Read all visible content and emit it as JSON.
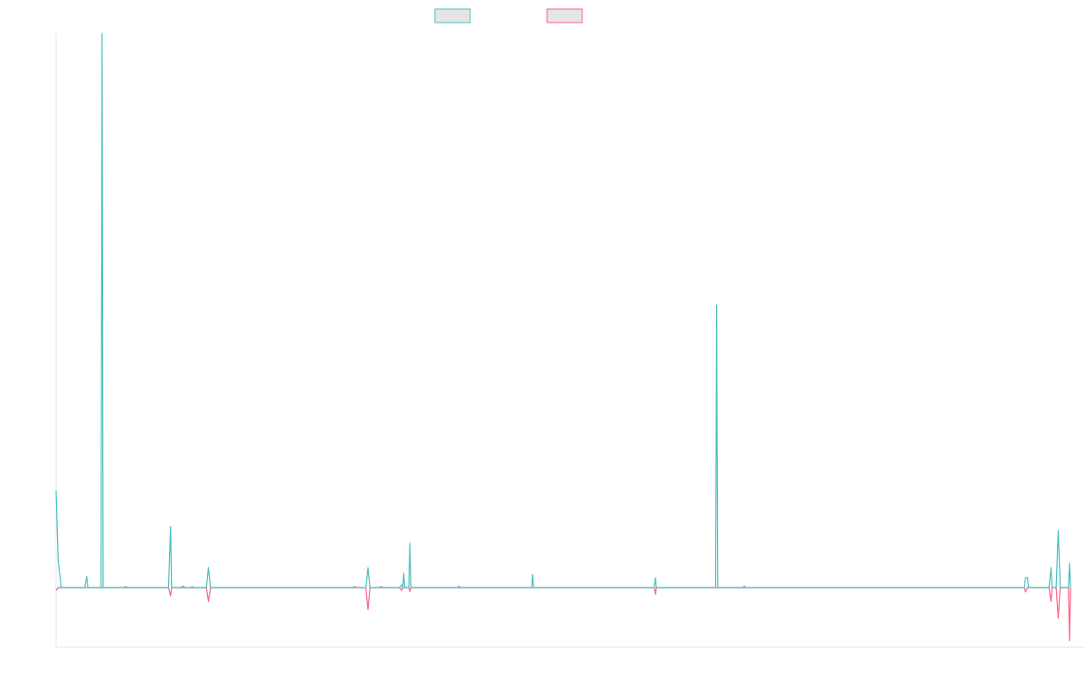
{
  "chart_data": {
    "type": "line",
    "title": "",
    "xlabel": "",
    "ylabel": "",
    "legend": {
      "placement": "top-center"
    },
    "grid": false,
    "x_range": [
      0,
      1000
    ],
    "ylim": [
      -10,
      100
    ],
    "series": [
      {
        "name": "",
        "color": "#4bc0c0",
        "legend_fill": "#e5e5e5",
        "points": [
          [
            0,
            17.5
          ],
          [
            2,
            5
          ],
          [
            5,
            0
          ],
          [
            28,
            0
          ],
          [
            30,
            2
          ],
          [
            31,
            0
          ],
          [
            44,
            0
          ],
          [
            45,
            100
          ],
          [
            46,
            0
          ],
          [
            66,
            0
          ],
          [
            68,
            0.2
          ],
          [
            70,
            0
          ],
          [
            110,
            0
          ],
          [
            112,
            11
          ],
          [
            113,
            0
          ],
          [
            122,
            0
          ],
          [
            124,
            0.3
          ],
          [
            126,
            0
          ],
          [
            132,
            0
          ],
          [
            133,
            0.2
          ],
          [
            134,
            0
          ],
          [
            147,
            0
          ],
          [
            149,
            3.6
          ],
          [
            151,
            0
          ],
          [
            205,
            0
          ],
          [
            206,
            0.1
          ],
          [
            207,
            0
          ],
          [
            290,
            0
          ],
          [
            292,
            0.2
          ],
          [
            294,
            0
          ],
          [
            303,
            0
          ],
          [
            305,
            3.6
          ],
          [
            307,
            0
          ],
          [
            316,
            0
          ],
          [
            318,
            0.2
          ],
          [
            320,
            0
          ],
          [
            336,
            0
          ],
          [
            338,
            0.5
          ],
          [
            339,
            0
          ],
          [
            340,
            2.6
          ],
          [
            341,
            0
          ],
          [
            345,
            0
          ],
          [
            346,
            8
          ],
          [
            347,
            0
          ],
          [
            393,
            0
          ],
          [
            394,
            0.3
          ],
          [
            395,
            0
          ],
          [
            465,
            0
          ],
          [
            466,
            2.4
          ],
          [
            467,
            0
          ],
          [
            585,
            0
          ],
          [
            586,
            1.8
          ],
          [
            587,
            0
          ],
          [
            645,
            0
          ],
          [
            646,
            51
          ],
          [
            647,
            0
          ],
          [
            672,
            0
          ],
          [
            673,
            0.3
          ],
          [
            674,
            0
          ],
          [
            947,
            0
          ],
          [
            948,
            1.8
          ],
          [
            950,
            1.8
          ],
          [
            951,
            0
          ],
          [
            971,
            0
          ],
          [
            973,
            3.6
          ],
          [
            974,
            0
          ],
          [
            978,
            0
          ],
          [
            980,
            10.3
          ],
          [
            982,
            0
          ],
          [
            990,
            0
          ],
          [
            991,
            4.4
          ],
          [
            992,
            0
          ]
        ]
      },
      {
        "name": "",
        "color": "#ff6384",
        "legend_fill": "#e5e5e5",
        "points": [
          [
            0,
            -0.5
          ],
          [
            2,
            0
          ],
          [
            110,
            0
          ],
          [
            112,
            -1.5
          ],
          [
            113,
            0
          ],
          [
            147,
            0
          ],
          [
            149,
            -2.5
          ],
          [
            151,
            0
          ],
          [
            303,
            0
          ],
          [
            305,
            -4
          ],
          [
            307,
            0
          ],
          [
            336,
            0
          ],
          [
            338,
            -0.5
          ],
          [
            339,
            0
          ],
          [
            345,
            0
          ],
          [
            346,
            -0.7
          ],
          [
            347,
            0
          ],
          [
            585,
            0
          ],
          [
            586,
            -1.2
          ],
          [
            587,
            0
          ],
          [
            947,
            0
          ],
          [
            948,
            -0.8
          ],
          [
            950,
            0
          ],
          [
            971,
            0
          ],
          [
            973,
            -2.5
          ],
          [
            974,
            0
          ],
          [
            978,
            0
          ],
          [
            980,
            -5.5
          ],
          [
            982,
            0
          ],
          [
            990,
            0
          ],
          [
            991,
            -9.6
          ],
          [
            992,
            0
          ]
        ]
      }
    ]
  }
}
